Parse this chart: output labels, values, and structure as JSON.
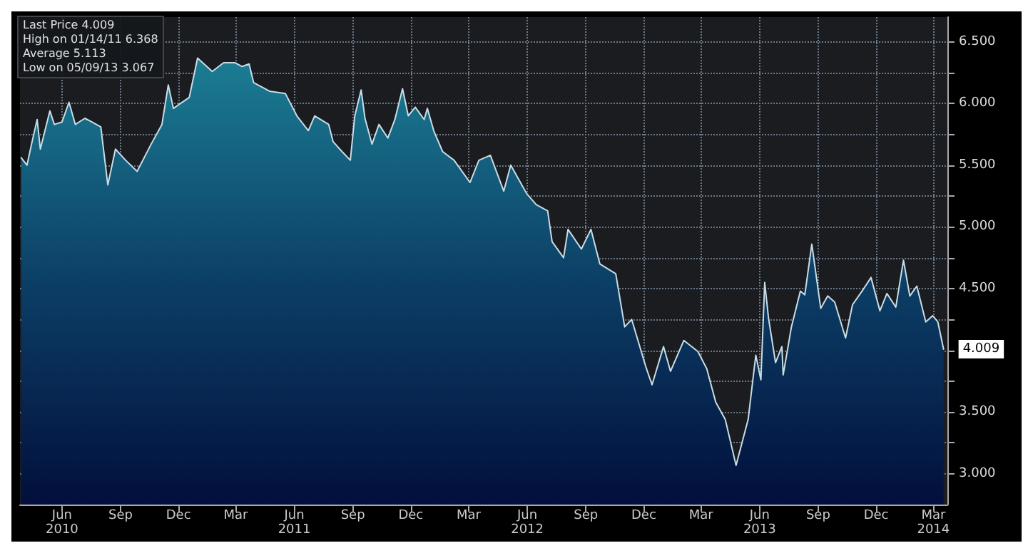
{
  "chart_data": {
    "type": "area",
    "x": [
      "2010-04-12",
      "2010-04-21",
      "2010-04-29",
      "2010-05-07",
      "2010-05-12",
      "2010-05-27",
      "2010-06-03",
      "2010-06-15",
      "2010-06-26",
      "2010-07-06",
      "2010-07-21",
      "2010-08-01",
      "2010-08-15",
      "2010-08-26",
      "2010-09-07",
      "2010-09-23",
      "2010-10-11",
      "2010-11-02",
      "2010-11-19",
      "2010-11-29",
      "2010-12-07",
      "2011-01-01",
      "2011-01-14",
      "2011-02-06",
      "2011-02-24",
      "2011-03-14",
      "2011-03-25",
      "2011-04-05",
      "2011-04-12",
      "2011-05-07",
      "2011-06-01",
      "2011-06-19",
      "2011-07-07",
      "2011-07-17",
      "2011-08-08",
      "2011-08-15",
      "2011-08-29",
      "2011-09-11",
      "2011-09-18",
      "2011-09-28",
      "2011-10-04",
      "2011-10-15",
      "2011-10-26",
      "2011-11-09",
      "2011-11-20",
      "2011-12-02",
      "2011-12-11",
      "2011-12-22",
      "2012-01-05",
      "2012-01-10",
      "2012-01-20",
      "2012-02-03",
      "2012-02-21",
      "2012-03-17",
      "2012-03-31",
      "2012-04-18",
      "2012-05-09",
      "2012-05-20",
      "2012-06-14",
      "2012-06-29",
      "2012-07-17",
      "2012-07-24",
      "2012-08-11",
      "2012-08-18",
      "2012-09-08",
      "2012-09-23",
      "2012-10-07",
      "2012-11-01",
      "2012-11-15",
      "2012-11-26",
      "2012-12-18",
      "2012-12-28",
      "2013-01-15",
      "2013-01-26",
      "2013-02-16",
      "2013-03-10",
      "2013-03-24",
      "2013-04-07",
      "2013-04-22",
      "2013-05-09",
      "2013-05-28",
      "2013-06-09",
      "2013-06-17",
      "2013-06-23",
      "2013-06-29",
      "2013-07-10",
      "2013-07-20",
      "2013-07-22",
      "2013-08-04",
      "2013-08-18",
      "2013-08-25",
      "2013-09-05",
      "2013-09-19",
      "2013-09-30",
      "2013-10-11",
      "2013-10-28",
      "2013-11-08",
      "2013-11-23",
      "2013-12-07",
      "2013-12-21",
      "2014-01-01",
      "2014-01-15",
      "2014-01-27",
      "2014-02-06",
      "2014-02-17",
      "2014-03-03",
      "2014-03-14",
      "2014-03-22",
      "2014-03-31"
    ],
    "series": [
      {
        "color": "#c8dce6",
        "values": [
          5.56,
          5.5,
          5.69,
          5.87,
          5.63,
          5.94,
          5.83,
          5.85,
          6.01,
          5.83,
          5.88,
          5.85,
          5.81,
          5.34,
          5.63,
          5.54,
          5.45,
          5.67,
          5.83,
          6.15,
          5.96,
          6.05,
          6.368,
          6.26,
          6.33,
          6.33,
          6.3,
          6.32,
          6.17,
          6.1,
          6.08,
          5.9,
          5.78,
          5.9,
          5.83,
          5.69,
          5.61,
          5.54,
          5.9,
          6.11,
          5.88,
          5.67,
          5.83,
          5.72,
          5.87,
          6.12,
          5.9,
          5.97,
          5.87,
          5.96,
          5.78,
          5.61,
          5.54,
          5.36,
          5.54,
          5.58,
          5.29,
          5.5,
          5.27,
          5.18,
          5.13,
          4.88,
          4.75,
          4.98,
          4.82,
          4.98,
          4.7,
          4.62,
          4.19,
          4.25,
          3.87,
          3.72,
          4.03,
          3.83,
          4.08,
          3.99,
          3.85,
          3.58,
          3.44,
          3.067,
          3.44,
          3.96,
          3.76,
          4.55,
          4.26,
          3.9,
          4.03,
          3.8,
          4.19,
          4.48,
          4.45,
          4.86,
          4.34,
          4.44,
          4.39,
          4.1,
          4.37,
          4.48,
          4.59,
          4.32,
          4.46,
          4.35,
          4.73,
          4.44,
          4.52,
          4.23,
          4.28,
          4.23,
          4.009
        ]
      }
    ],
    "xlim": [
      "2010-04-10",
      "2014-04-06"
    ],
    "xticks": [
      {
        "value": "2010-06-15",
        "label": "Jun\n2010"
      },
      {
        "value": "2010-09-15",
        "label": "Sep"
      },
      {
        "value": "2010-12-15",
        "label": "Dec"
      },
      {
        "value": "2011-03-15",
        "label": "Mar"
      },
      {
        "value": "2011-06-15",
        "label": "Jun\n2011"
      },
      {
        "value": "2011-09-15",
        "label": "Sep"
      },
      {
        "value": "2011-12-15",
        "label": "Dec"
      },
      {
        "value": "2012-03-15",
        "label": "Mar"
      },
      {
        "value": "2012-06-15",
        "label": "Jun\n2012"
      },
      {
        "value": "2012-09-15",
        "label": "Sep"
      },
      {
        "value": "2012-12-15",
        "label": "Dec"
      },
      {
        "value": "2013-03-15",
        "label": "Mar"
      },
      {
        "value": "2013-06-15",
        "label": "Jun\n2013"
      },
      {
        "value": "2013-09-15",
        "label": "Sep"
      },
      {
        "value": "2013-12-15",
        "label": "Dec"
      },
      {
        "value": "2014-03-15",
        "label": "Mar\n2014"
      }
    ],
    "ylim": [
      2.75,
      6.7
    ],
    "yticks": [
      {
        "value": 3,
        "label": "3.000"
      },
      {
        "value": 3.25,
        "label": null
      },
      {
        "value": 3.5,
        "label": "3.500"
      },
      {
        "value": 3.75,
        "label": null
      },
      {
        "value": 4,
        "label": null
      },
      {
        "value": 4.25,
        "label": null
      },
      {
        "value": 4.5,
        "label": "4.500"
      },
      {
        "value": 4.75,
        "label": null
      },
      {
        "value": 5,
        "label": "5.000"
      },
      {
        "value": 5.25,
        "label": null
      },
      {
        "value": 5.5,
        "label": "5.500"
      },
      {
        "value": 5.75,
        "label": null
      },
      {
        "value": 6,
        "label": "6.000"
      },
      {
        "value": 6.25,
        "label": null
      },
      {
        "value": 6.5,
        "label": "6.500"
      }
    ],
    "annotations": [
      "Last Price 4.009",
      "High on 01/14/11 6.368",
      "Average 5.113",
      "Low on 05/09/13 3.067",
      {
        "text": "4.009",
        "x": "2014-03-31",
        "y": 4.009
      }
    ],
    "grid": true,
    "marker": "none",
    "line_style": "solid"
  }
}
